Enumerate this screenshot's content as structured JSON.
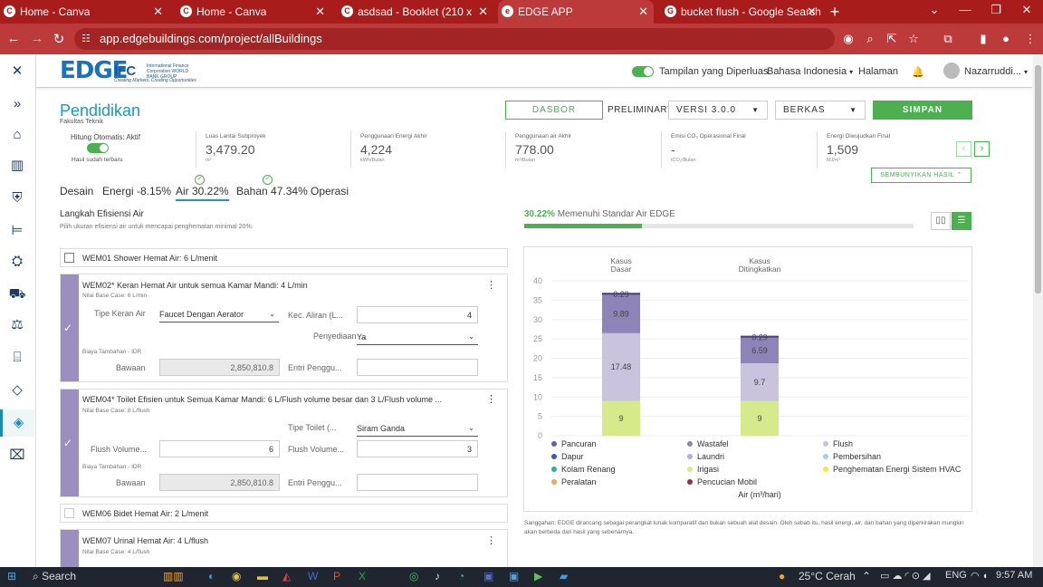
{
  "browser": {
    "tabs": [
      {
        "label": "Home - Canva",
        "icon": "C"
      },
      {
        "label": "Home - Canva",
        "icon": "C"
      },
      {
        "label": "asdsad - Booklet (210 x 297 mm",
        "icon": "C"
      },
      {
        "label": "EDGE APP",
        "icon": "e"
      },
      {
        "label": "bucket flush - Google Search",
        "icon": "G"
      }
    ],
    "url": "app.edgebuildings.com/project/allBuildings"
  },
  "header": {
    "logo_edge": "EDGE",
    "logo_ifc": "IFC",
    "logo_ifc_sub": "International Finance Corporation WORLD BANK GROUP",
    "logo_tagline": "Creating Markets, Creating Opportunities",
    "detail_view_label": "Tampilan yang Diperluas",
    "language": "Bahasa Indonesia",
    "page_menu": "Halaman",
    "user_name": "Nazarruddi..."
  },
  "project": {
    "title": "Pendidikan",
    "subtitle": "Fakultas Teknik",
    "dashboard_button": "DASBOR",
    "stage": "PRELIMINARY",
    "version": "VERSI 3.0.0",
    "files": "BERKAS",
    "save_button": "SIMPAN"
  },
  "metrics": {
    "auto_calc": "Hitung Otomatis: Aktif",
    "auto_calc_sub": "Hasil sudah terbaru",
    "items": [
      {
        "label": "Luas Lantai Subproyek",
        "value": "3,479.20",
        "unit": "m²"
      },
      {
        "label": "Penggunaan Energi Akhir",
        "value": "4,224",
        "unit": "kWh/Bulan"
      },
      {
        "label": "Penggunaan air Akhir",
        "value": "778.00",
        "unit": "m³/Bulan"
      },
      {
        "label": "Emisi CO₂ Operasional Final",
        "value": "-",
        "unit": "tCO₂/Bulan"
      },
      {
        "label": "Energi Diwujudkan Final",
        "value": "1,509",
        "unit": "MJ/m²"
      }
    ],
    "hide_results": "SEMBUNYIKAN HASIL"
  },
  "tabs": [
    {
      "label": "Desain"
    },
    {
      "label": "Energi -8.15%"
    },
    {
      "label": "Air 30.22%"
    },
    {
      "label": "Bahan 47.34%"
    },
    {
      "label": "Operasi"
    }
  ],
  "step": {
    "title": "Langkah Efisiensi Air",
    "subtitle": "Pilih ukuran efisiensi air untuk mencapai penghematan minimal 20%."
  },
  "measures": {
    "wem01": {
      "title": "WEM01   Shower Hemat Air: 6 L/menit"
    },
    "wem02": {
      "title": "WEM02*   Keran Hemat Air untuk semua Kamar Mandi: 4 L/min",
      "base": "Nilai Base Case: 6 L/min",
      "type_label": "Tipe Keran Air",
      "type_value": "Faucet Dengan Aerator",
      "flow_label": "Kec. Aliran (L...",
      "flow_value": "4",
      "supply_label": "Penyediaan ...",
      "supply_value": "Ya",
      "cost_label": "Biaya Tambahan - IDR",
      "default_label": "Bawaan",
      "default_value": "2,850,810.8",
      "user_entry_label": "Entri Penggu..."
    },
    "wem04": {
      "title": "WEM04*   Toilet Efisien untuk Semua Kamar Mandi: 6 L/Flush volume besar dan 3 L/Flush volume ...",
      "base": "Nilai Base Case: 8 L/flush",
      "type_label": "Tipe Toilet (...",
      "type_value": "Siram Ganda",
      "flush1_label": "Flush Volume...",
      "flush1_value": "6",
      "flush2_label": "Flush Volume...",
      "flush2_value": "3",
      "cost_label": "Biaya Tambahan - IDR",
      "default_label": "Bawaan",
      "default_value": "2,850,810.8",
      "user_entry_label": "Entri Penggu..."
    },
    "wem06": {
      "title": "WEM06   Bidet Hemat Air: 2 L/menit"
    },
    "wem07": {
      "title": "WEM07   Urinal Hemat Air: 4 L/flush",
      "base": "Nilai Base Case: 4 L/flush"
    }
  },
  "standard": {
    "pct": "30.22%",
    "text": "Memenuhi Standar Air EDGE",
    "progress": 0.3022
  },
  "chart_data": {
    "type": "bar",
    "stacked": true,
    "categories": [
      "Kasus\nDasar",
      "Kasus\nDitingkatkan"
    ],
    "category_lines": [
      [
        "Kasus",
        "Dasar"
      ],
      [
        "Kasus",
        "Ditingkatkan"
      ]
    ],
    "ylim": [
      0,
      40
    ],
    "yticks": [
      0,
      5,
      10,
      15,
      20,
      25,
      30,
      35,
      40
    ],
    "ylabel": "Air (m³/hari)",
    "series": [
      {
        "name": "Irigasi",
        "color": "#d6ea8c",
        "values": [
          9,
          9
        ],
        "labels": [
          "9",
          "9"
        ]
      },
      {
        "name": "Laundri",
        "color": "#c9c3dd",
        "values": [
          0,
          0
        ],
        "labels": [
          "-",
          "-"
        ]
      },
      {
        "name": "Flush",
        "color": "#c9c3dd",
        "values": [
          17.48,
          9.7
        ],
        "labels": [
          "17.48",
          "9.7"
        ]
      },
      {
        "name": "Wastafel",
        "color": "#8f84b8",
        "values": [
          9.89,
          6.59
        ],
        "labels": [
          "9.89",
          "6.59"
        ]
      },
      {
        "name": "Pancuran",
        "color": "#6b5fa0",
        "values": [
          0.29,
          0.29
        ],
        "labels": [
          "0.29",
          "0.29"
        ]
      }
    ],
    "legend": [
      {
        "name": "Pancuran",
        "color": "#6b5fa0"
      },
      {
        "name": "Wastafel",
        "color": "#8f84b8"
      },
      {
        "name": "Flush",
        "color": "#c9c3dd"
      },
      {
        "name": "Dapur",
        "color": "#3b5ba8"
      },
      {
        "name": "Laundri",
        "color": "#b5b0d3"
      },
      {
        "name": "Pembersihan",
        "color": "#a8cde6"
      },
      {
        "name": "Kolam Renang",
        "color": "#3aa89a"
      },
      {
        "name": "Irigasi",
        "color": "#d6ea8c"
      },
      {
        "name": "Penghematan Energi Sistem HVAC",
        "color": "#f5e84a"
      },
      {
        "name": "Peralatan",
        "color": "#f4a35c"
      },
      {
        "name": "Pencucian Mobil",
        "color": "#9a2e4a"
      }
    ]
  },
  "disclaimer": "Sanggahan: EDGE dirancang sebagai perangkat lunak komparatif dan bukan sebuah alat desain. Oleh sebab itu, hasil energi, air, dan bahan yang diperkirakan mungkin akan berbeda dari hasil yang sebenarnya.",
  "taskbar": {
    "search": "Search",
    "weather": "25°C  Cerah",
    "lang": "ENG",
    "time": "9:57 AM"
  }
}
